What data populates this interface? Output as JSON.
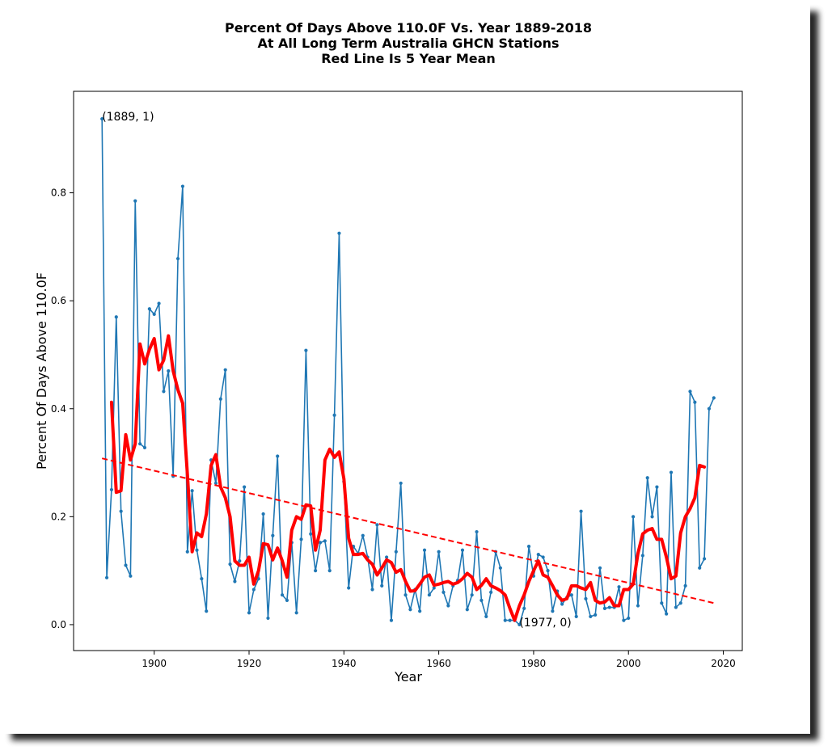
{
  "chart_data": {
    "type": "line",
    "title_lines": [
      "Percent Of Days Above 110.0F Vs. Year 1889-2018",
      "At All Long Term Australia GHCN Stations",
      "Red Line Is 5 Year Mean"
    ],
    "xlabel": "Year",
    "ylabel": "Percent Of Days Above 110.0F",
    "xlim": [
      1883,
      2024
    ],
    "ylim": [
      -0.048,
      0.988
    ],
    "xticks": [
      1900,
      1920,
      1940,
      1960,
      1980,
      2000,
      2020
    ],
    "yticks": [
      0.0,
      0.2,
      0.4,
      0.6,
      0.8
    ],
    "ytick_labels": [
      "0.0",
      "0.2",
      "0.4",
      "0.6",
      "0.8"
    ],
    "grid": false,
    "annotations": [
      {
        "text": "(1889, 1)",
        "x": 1889,
        "y": 0.937
      },
      {
        "text": "(1977, 0)",
        "x": 1977,
        "y": 0.0
      }
    ],
    "colors": {
      "data_line": "#1f77b4",
      "mean_line": "#ff0000",
      "trend_line": "#ff0000"
    },
    "series": [
      {
        "style": "line-with-markers",
        "color": "#1f77b4",
        "x": [
          1889,
          1890,
          1891,
          1892,
          1893,
          1894,
          1895,
          1896,
          1897,
          1898,
          1899,
          1900,
          1901,
          1902,
          1903,
          1904,
          1905,
          1906,
          1907,
          1908,
          1909,
          1910,
          1911,
          1912,
          1913,
          1914,
          1915,
          1916,
          1917,
          1918,
          1919,
          1920,
          1921,
          1922,
          1923,
          1924,
          1925,
          1926,
          1927,
          1928,
          1929,
          1930,
          1931,
          1932,
          1933,
          1934,
          1935,
          1936,
          1937,
          1938,
          1939,
          1940,
          1941,
          1942,
          1943,
          1944,
          1945,
          1946,
          1947,
          1948,
          1949,
          1950,
          1951,
          1952,
          1953,
          1954,
          1955,
          1956,
          1957,
          1958,
          1959,
          1960,
          1961,
          1962,
          1963,
          1964,
          1965,
          1966,
          1967,
          1968,
          1969,
          1970,
          1971,
          1972,
          1973,
          1974,
          1975,
          1976,
          1977,
          1978,
          1979,
          1980,
          1981,
          1982,
          1983,
          1984,
          1985,
          1986,
          1987,
          1988,
          1989,
          1990,
          1991,
          1992,
          1993,
          1994,
          1995,
          1996,
          1997,
          1998,
          1999,
          2000,
          2001,
          2002,
          2003,
          2004,
          2005,
          2006,
          2007,
          2008,
          2009,
          2010,
          2011,
          2012,
          2013,
          2014,
          2015,
          2016,
          2017,
          2018
        ],
        "y": [
          0.937,
          0.087,
          0.25,
          0.57,
          0.21,
          0.11,
          0.09,
          0.785,
          0.335,
          0.328,
          0.585,
          0.575,
          0.595,
          0.432,
          0.47,
          0.275,
          0.678,
          0.812,
          0.135,
          0.248,
          0.138,
          0.085,
          0.025,
          0.305,
          0.262,
          0.418,
          0.472,
          0.112,
          0.08,
          0.118,
          0.255,
          0.022,
          0.065,
          0.085,
          0.205,
          0.012,
          0.165,
          0.312,
          0.055,
          0.045,
          0.152,
          0.022,
          0.158,
          0.508,
          0.168,
          0.1,
          0.152,
          0.155,
          0.1,
          0.388,
          0.725,
          0.265,
          0.068,
          0.145,
          0.132,
          0.165,
          0.125,
          0.065,
          0.185,
          0.072,
          0.125,
          0.008,
          0.135,
          0.262,
          0.055,
          0.028,
          0.065,
          0.025,
          0.138,
          0.055,
          0.068,
          0.135,
          0.06,
          0.035,
          0.072,
          0.082,
          0.138,
          0.028,
          0.055,
          0.172,
          0.045,
          0.015,
          0.06,
          0.135,
          0.105,
          0.008,
          0.008,
          0.008,
          0.0,
          0.03,
          0.145,
          0.09,
          0.13,
          0.125,
          0.1,
          0.025,
          0.062,
          0.038,
          0.05,
          0.055,
          0.015,
          0.21,
          0.048,
          0.015,
          0.018,
          0.105,
          0.03,
          0.032,
          0.032,
          0.07,
          0.008,
          0.012,
          0.2,
          0.035,
          0.128,
          0.272,
          0.2,
          0.255,
          0.04,
          0.02,
          0.282,
          0.032,
          0.04,
          0.072,
          0.432,
          0.412,
          0.105,
          0.122,
          0.4,
          0.42
        ]
      },
      {
        "name": "5 Year Mean",
        "style": "thick-line",
        "color": "#ff0000",
        "x": [
          1891,
          1892,
          1893,
          1894,
          1895,
          1896,
          1897,
          1898,
          1899,
          1900,
          1901,
          1902,
          1903,
          1904,
          1905,
          1906,
          1907,
          1908,
          1909,
          1910,
          1911,
          1912,
          1913,
          1914,
          1915,
          1916,
          1917,
          1918,
          1919,
          1920,
          1921,
          1922,
          1923,
          1924,
          1925,
          1926,
          1927,
          1928,
          1929,
          1930,
          1931,
          1932,
          1933,
          1934,
          1935,
          1936,
          1937,
          1938,
          1939,
          1940,
          1941,
          1942,
          1943,
          1944,
          1945,
          1946,
          1947,
          1948,
          1949,
          1950,
          1951,
          1952,
          1953,
          1954,
          1955,
          1956,
          1957,
          1958,
          1959,
          1960,
          1961,
          1962,
          1963,
          1964,
          1965,
          1966,
          1967,
          1968,
          1969,
          1970,
          1971,
          1972,
          1973,
          1974,
          1975,
          1976,
          1977,
          1978,
          1979,
          1980,
          1981,
          1982,
          1983,
          1984,
          1985,
          1986,
          1987,
          1988,
          1989,
          1990,
          1991,
          1992,
          1993,
          1994,
          1995,
          1996,
          1997,
          1998,
          1999,
          2000,
          2001,
          2002,
          2003,
          2004,
          2005,
          2006,
          2007,
          2008,
          2009,
          2010,
          2011,
          2012,
          2013,
          2014,
          2015,
          2016
        ],
        "y": [
          0.412,
          0.245,
          0.248,
          0.352,
          0.305,
          0.335,
          0.52,
          0.483,
          0.51,
          0.53,
          0.472,
          0.49,
          0.535,
          0.47,
          0.435,
          0.41,
          0.278,
          0.135,
          0.17,
          0.163,
          0.205,
          0.295,
          0.315,
          0.255,
          0.235,
          0.2,
          0.118,
          0.11,
          0.11,
          0.125,
          0.075,
          0.1,
          0.15,
          0.148,
          0.12,
          0.142,
          0.118,
          0.088,
          0.175,
          0.2,
          0.195,
          0.222,
          0.22,
          0.138,
          0.175,
          0.305,
          0.325,
          0.31,
          0.32,
          0.27,
          0.16,
          0.13,
          0.13,
          0.132,
          0.12,
          0.112,
          0.092,
          0.105,
          0.12,
          0.115,
          0.097,
          0.102,
          0.08,
          0.062,
          0.063,
          0.075,
          0.088,
          0.092,
          0.073,
          0.075,
          0.078,
          0.08,
          0.075,
          0.078,
          0.085,
          0.095,
          0.088,
          0.065,
          0.073,
          0.085,
          0.072,
          0.068,
          0.063,
          0.055,
          0.03,
          0.008,
          0.035,
          0.055,
          0.08,
          0.1,
          0.118,
          0.092,
          0.088,
          0.072,
          0.055,
          0.045,
          0.048,
          0.072,
          0.072,
          0.068,
          0.065,
          0.078,
          0.045,
          0.04,
          0.042,
          0.05,
          0.035,
          0.035,
          0.065,
          0.065,
          0.075,
          0.132,
          0.168,
          0.175,
          0.178,
          0.158,
          0.158,
          0.125,
          0.085,
          0.09,
          0.17,
          0.2,
          0.215,
          0.235,
          0.295,
          0.292
        ]
      },
      {
        "name": "Trend",
        "style": "dashed-line",
        "color": "#ff0000",
        "x": [
          1889,
          2018
        ],
        "y": [
          0.308,
          0.04
        ]
      }
    ]
  }
}
